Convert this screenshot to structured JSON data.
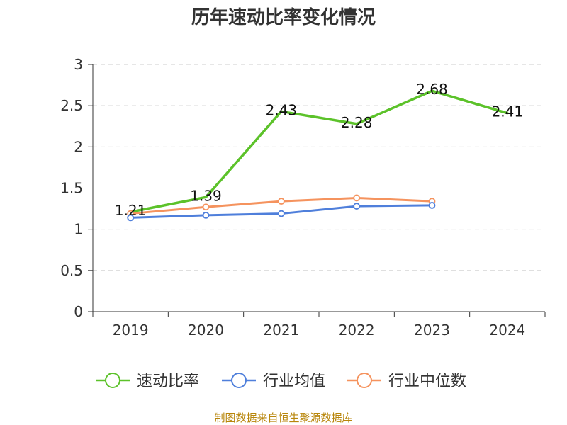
{
  "chart_data": {
    "type": "line",
    "title": "历年速动比率变化情况",
    "categories": [
      "2019",
      "2020",
      "2021",
      "2022",
      "2023",
      "2024"
    ],
    "ylim": [
      0,
      3
    ],
    "yticks": [
      0,
      0.5,
      1,
      1.5,
      2,
      2.5,
      3
    ],
    "ytick_labels": [
      "0",
      "0.5",
      "1",
      "1.5",
      "2",
      "2.5",
      "3"
    ],
    "grid": true,
    "legend_position": "bottom",
    "series": [
      {
        "name": "速动比率",
        "color": "#5cc22a",
        "values": [
          1.21,
          1.39,
          2.43,
          2.28,
          2.68,
          2.41
        ],
        "labels": [
          "1.21",
          "1.39",
          "2.43",
          "2.28",
          "2.68",
          "2.41"
        ],
        "show_markers": false
      },
      {
        "name": "行业均值",
        "color": "#4f7fdb",
        "values": [
          1.14,
          1.17,
          1.19,
          1.28,
          1.29,
          null
        ],
        "show_markers": true
      },
      {
        "name": "行业中位数",
        "color": "#f5935e",
        "values": [
          1.19,
          1.27,
          1.34,
          1.38,
          1.34,
          null
        ],
        "show_markers": true
      }
    ]
  },
  "source": "制图数据来自恒生聚源数据库"
}
